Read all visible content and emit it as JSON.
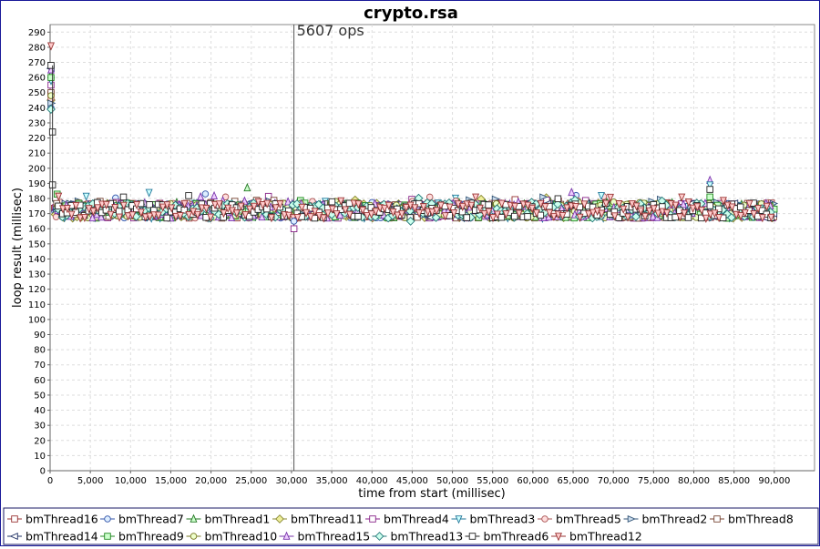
{
  "chart_data": {
    "type": "scatter",
    "title": "crypto.rsa",
    "xlabel": "time from start (millisec)",
    "ylabel": "loop result (millisec)",
    "xlim": [
      0,
      95000
    ],
    "ylim": [
      0,
      295
    ],
    "x_ticks": [
      0,
      5000,
      10000,
      15000,
      20000,
      25000,
      30000,
      35000,
      40000,
      45000,
      50000,
      55000,
      60000,
      65000,
      70000,
      75000,
      80000,
      85000,
      90000
    ],
    "x_tick_labels": [
      "0",
      "5,000",
      "10,000",
      "15,000",
      "20,000",
      "25,000",
      "30,000",
      "35,000",
      "40,000",
      "45,000",
      "50,000",
      "55,000",
      "60,000",
      "65,000",
      "70,000",
      "75,000",
      "80,000",
      "85,000",
      "90,000"
    ],
    "y_ticks": [
      0,
      10,
      20,
      30,
      40,
      50,
      60,
      70,
      80,
      90,
      100,
      110,
      120,
      130,
      140,
      150,
      160,
      170,
      180,
      190,
      200,
      210,
      220,
      230,
      240,
      250,
      260,
      270,
      280,
      290
    ],
    "grid": true,
    "legend_position": "bottom",
    "annotation": {
      "x": 30300,
      "label": "5607 ops"
    },
    "steady_value": 172,
    "steady_spread": 5,
    "x_end": 90000,
    "series": [
      {
        "name": "bmThread16",
        "marker": "square",
        "color": "#993333",
        "fill": "#ffffff",
        "start_value": 249
      },
      {
        "name": "bmThread7",
        "marker": "circle",
        "color": "#3355aa",
        "fill": "#ddeeff",
        "start_value": 240
      },
      {
        "name": "bmThread1",
        "marker": "triangle-up",
        "color": "#227722",
        "fill": "#ccffcc",
        "start_value": 262
      },
      {
        "name": "bmThread11",
        "marker": "diamond",
        "color": "#888833",
        "fill": "#eeee99",
        "start_value": 245
      },
      {
        "name": "bmThread4",
        "marker": "square",
        "color": "#882288",
        "fill": "#ffffff",
        "start_value": 255
      },
      {
        "name": "bmThread3",
        "marker": "triangle-down",
        "color": "#227799",
        "fill": "#ccffff",
        "start_value": 258
      },
      {
        "name": "bmThread5",
        "marker": "circle",
        "color": "#aa5555",
        "fill": "#ffdddd",
        "start_value": 246
      },
      {
        "name": "bmThread2",
        "marker": "triangle-right",
        "color": "#335577",
        "fill": "#ccddee",
        "start_value": 243
      },
      {
        "name": "bmThread8",
        "marker": "square",
        "color": "#774433",
        "fill": "#ffffff",
        "start_value": 250
      },
      {
        "name": "bmThread14",
        "marker": "triangle-left",
        "color": "#223366",
        "fill": "#ffffff",
        "start_value": 266
      },
      {
        "name": "bmThread9",
        "marker": "square",
        "color": "#228822",
        "fill": "#ccffcc",
        "start_value": 260
      },
      {
        "name": "bmThread10",
        "marker": "circle",
        "color": "#777722",
        "fill": "#eeffcc",
        "start_value": 248
      },
      {
        "name": "bmThread15",
        "marker": "triangle-up",
        "color": "#7733aa",
        "fill": "#eeccff",
        "start_value": 265
      },
      {
        "name": "bmThread13",
        "marker": "diamond",
        "color": "#227777",
        "fill": "#ccffee",
        "start_value": 239
      },
      {
        "name": "bmThread6",
        "marker": "square",
        "color": "#222222",
        "fill": "#ffffff",
        "start_value": 268
      },
      {
        "name": "bmThread12",
        "marker": "triangle-down",
        "color": "#993333",
        "fill": "#ffcccc",
        "start_value": 281
      }
    ],
    "outliers": [
      {
        "series": "bmThread6",
        "x": 300,
        "y": 224
      },
      {
        "series": "bmThread6",
        "x": 300,
        "y": 189
      },
      {
        "series": "bmThread1",
        "x": 24500,
        "y": 187
      },
      {
        "series": "bmThread3",
        "x": 12300,
        "y": 184
      },
      {
        "series": "bmThread7",
        "x": 19300,
        "y": 183
      },
      {
        "series": "bmThread15",
        "x": 18700,
        "y": 181
      },
      {
        "series": "bmThread15",
        "x": 64800,
        "y": 184
      },
      {
        "series": "bmThread3",
        "x": 68500,
        "y": 182
      },
      {
        "series": "bmThread12",
        "x": 78500,
        "y": 181
      },
      {
        "series": "bmThread15",
        "x": 82000,
        "y": 192
      },
      {
        "series": "bmThread3",
        "x": 82000,
        "y": 189
      },
      {
        "series": "bmThread6",
        "x": 82000,
        "y": 186
      },
      {
        "series": "bmThread9",
        "x": 82000,
        "y": 181
      },
      {
        "series": "bmThread4",
        "x": 30300,
        "y": 160
      },
      {
        "series": "bmThread7",
        "x": 30300,
        "y": 165
      },
      {
        "series": "bmThread13",
        "x": 44800,
        "y": 165
      }
    ]
  }
}
